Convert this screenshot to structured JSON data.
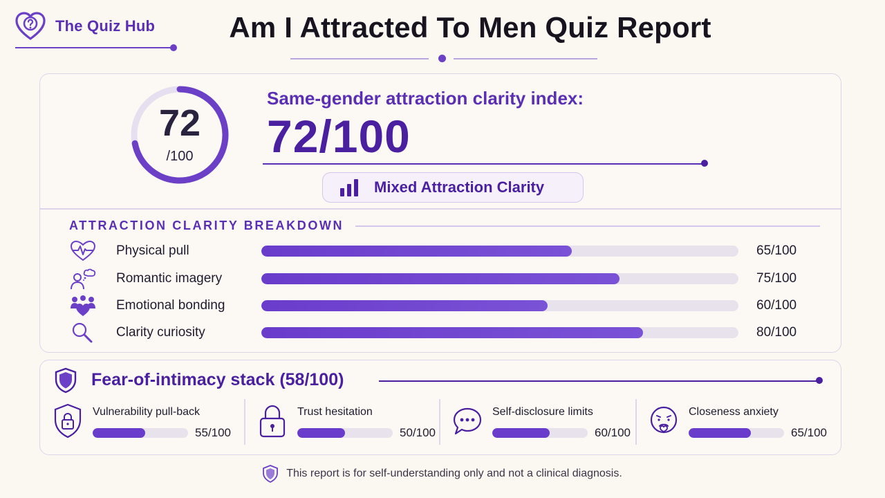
{
  "brand": {
    "name": "The Quiz Hub",
    "logo_icon": "heart-question-icon"
  },
  "page": {
    "title": "Am I Attracted To Men Quiz Report"
  },
  "score": {
    "ring_value": "72",
    "ring_denominator": "/100",
    "ring_fraction": 0.72,
    "index_label": "Same-gender attraction clarity index:",
    "index_value": "72/100",
    "badge_label": "Mixed Attraction Clarity",
    "badge_icon": "bar-chart-icon"
  },
  "breakdown": {
    "section_label": "ATTRACTION CLARITY BREAKDOWN",
    "items": [
      {
        "label": "Physical pull",
        "value": 65,
        "score": "65/100",
        "icon": "heart-pulse-icon"
      },
      {
        "label": "Romantic imagery",
        "value": 75,
        "score": "75/100",
        "icon": "person-thought-icon"
      },
      {
        "label": "Emotional bonding",
        "value": 60,
        "score": "60/100",
        "icon": "group-heart-icon"
      },
      {
        "label": "Clarity curiosity",
        "value": 80,
        "score": "80/100",
        "icon": "magnifier-icon"
      }
    ]
  },
  "fear": {
    "title": "Fear-of-intimacy stack (58/100)",
    "icon": "shield-icon",
    "items": [
      {
        "label": "Vulnerability pull-back",
        "value": 55,
        "score": "55/100",
        "icon": "shield-lock-icon"
      },
      {
        "label": "Trust hesitation",
        "value": 50,
        "score": "50/100",
        "icon": "padlock-icon"
      },
      {
        "label": "Self-disclosure limits",
        "value": 60,
        "score": "60/100",
        "icon": "speech-bubble-icon"
      },
      {
        "label": "Closeness anxiety",
        "value": 65,
        "score": "65/100",
        "icon": "anxious-face-icon"
      }
    ]
  },
  "footer": {
    "text": "This report is for self-understanding only and not a clinical diagnosis.",
    "icon": "shield-icon"
  },
  "colors": {
    "accent": "#5b2fb3",
    "accent_dark": "#4a1fa0",
    "track": "#e7e2ec",
    "background": "#fbf7f1"
  }
}
